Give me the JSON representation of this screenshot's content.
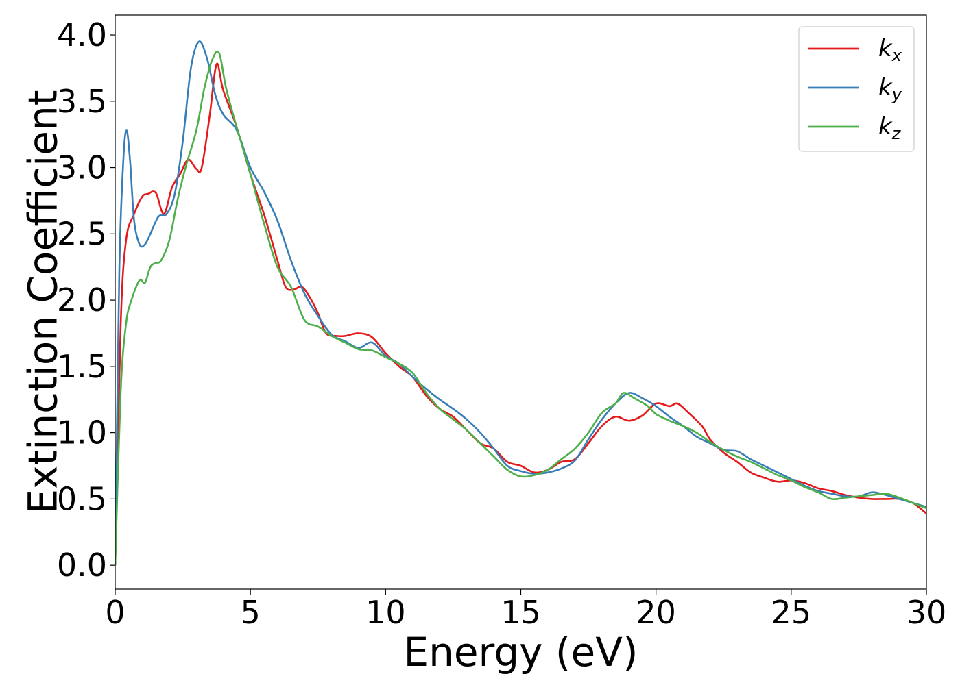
{
  "chart_data": {
    "type": "line",
    "title": "",
    "xlabel": "Energy (eV)",
    "ylabel": "Extinction Coefficient",
    "xlim": [
      0,
      30
    ],
    "ylim": [
      -0.18,
      4.15
    ],
    "xticks": [
      0,
      5,
      10,
      15,
      20,
      25,
      30
    ],
    "xtick_labels": [
      "0",
      "5",
      "10",
      "15",
      "20",
      "25",
      "30"
    ],
    "yticks": [
      0.0,
      0.5,
      1.0,
      1.5,
      2.0,
      2.5,
      3.0,
      3.5,
      4.0
    ],
    "ytick_labels": [
      "0.0",
      "0.5",
      "1.0",
      "1.5",
      "2.0",
      "2.5",
      "3.0",
      "3.5",
      "4.0"
    ],
    "grid": false,
    "legend_position": "top-right",
    "series": [
      {
        "name": "k_x",
        "label_main": "k",
        "label_sub": "x",
        "color": "#e41a1c",
        "x": [
          0,
          0.2,
          0.4,
          0.7,
          1.0,
          1.2,
          1.5,
          1.8,
          2.1,
          2.4,
          2.7,
          3.0,
          3.2,
          3.5,
          3.75,
          4.0,
          4.5,
          5.0,
          5.5,
          6.0,
          6.3,
          6.6,
          6.9,
          7.2,
          7.5,
          7.8,
          8.2,
          8.5,
          9.0,
          9.5,
          10.0,
          10.5,
          11.0,
          11.5,
          12.0,
          12.5,
          13.0,
          13.5,
          14.0,
          14.5,
          15.0,
          15.5,
          16.0,
          16.5,
          17.0,
          17.5,
          18.0,
          18.5,
          19.0,
          19.5,
          20.0,
          20.5,
          20.8,
          21.2,
          21.7,
          22.0,
          22.5,
          23.0,
          23.5,
          24.0,
          24.5,
          25.0,
          25.5,
          26.0,
          26.5,
          27.0,
          27.5,
          28.0,
          28.5,
          29.0,
          29.5,
          30.0
        ],
        "values": [
          0.0,
          1.8,
          2.45,
          2.65,
          2.78,
          2.8,
          2.81,
          2.65,
          2.85,
          2.95,
          3.06,
          2.99,
          3.0,
          3.4,
          3.78,
          3.58,
          3.3,
          2.95,
          2.65,
          2.3,
          2.1,
          2.08,
          2.1,
          2.02,
          1.9,
          1.75,
          1.73,
          1.73,
          1.75,
          1.72,
          1.6,
          1.5,
          1.42,
          1.28,
          1.18,
          1.12,
          1.02,
          0.92,
          0.88,
          0.78,
          0.75,
          0.7,
          0.72,
          0.78,
          0.8,
          0.92,
          1.05,
          1.12,
          1.09,
          1.13,
          1.22,
          1.2,
          1.22,
          1.15,
          1.05,
          0.95,
          0.85,
          0.78,
          0.7,
          0.66,
          0.63,
          0.64,
          0.62,
          0.58,
          0.56,
          0.53,
          0.51,
          0.5,
          0.5,
          0.5,
          0.47,
          0.39
        ]
      },
      {
        "name": "k_y",
        "label_main": "k",
        "label_sub": "y",
        "color": "#377eb8",
        "x": [
          0,
          0.15,
          0.3,
          0.42,
          0.55,
          0.7,
          0.9,
          1.1,
          1.3,
          1.6,
          1.9,
          2.2,
          2.5,
          2.8,
          3.1,
          3.4,
          3.7,
          4.0,
          4.5,
          5.0,
          5.5,
          6.0,
          6.5,
          7.0,
          7.5,
          8.0,
          8.5,
          9.0,
          9.5,
          10.0,
          10.5,
          11.0,
          11.5,
          12.0,
          12.5,
          13.0,
          13.5,
          14.0,
          14.5,
          15.0,
          15.5,
          16.0,
          16.5,
          17.0,
          17.5,
          18.0,
          18.5,
          19.0,
          19.5,
          20.0,
          20.5,
          21.0,
          21.5,
          22.0,
          22.5,
          23.0,
          23.5,
          24.0,
          24.5,
          25.0,
          25.5,
          26.0,
          26.5,
          27.0,
          27.5,
          28.0,
          28.5,
          29.0,
          29.5,
          30.0
        ],
        "values": [
          0.0,
          2.2,
          3.05,
          3.28,
          3.05,
          2.6,
          2.42,
          2.42,
          2.5,
          2.63,
          2.65,
          2.8,
          3.2,
          3.75,
          3.95,
          3.82,
          3.55,
          3.4,
          3.28,
          3.0,
          2.82,
          2.6,
          2.3,
          2.05,
          1.88,
          1.74,
          1.69,
          1.64,
          1.68,
          1.58,
          1.52,
          1.42,
          1.33,
          1.25,
          1.18,
          1.1,
          1.0,
          0.88,
          0.75,
          0.71,
          0.69,
          0.7,
          0.73,
          0.79,
          0.95,
          1.1,
          1.22,
          1.3,
          1.26,
          1.2,
          1.12,
          1.05,
          0.97,
          0.92,
          0.87,
          0.86,
          0.8,
          0.75,
          0.7,
          0.65,
          0.6,
          0.56,
          0.54,
          0.52,
          0.52,
          0.55,
          0.53,
          0.5,
          0.47,
          0.44
        ]
      },
      {
        "name": "k_z",
        "label_main": "k",
        "label_sub": "z",
        "color": "#4daf4a",
        "x": [
          0,
          0.2,
          0.4,
          0.6,
          0.9,
          1.1,
          1.3,
          1.5,
          1.7,
          2.0,
          2.3,
          2.6,
          3.0,
          3.3,
          3.6,
          3.85,
          4.1,
          4.5,
          5.0,
          5.5,
          6.0,
          6.5,
          7.0,
          7.5,
          8.0,
          8.5,
          9.0,
          9.5,
          10.0,
          10.5,
          11.0,
          11.5,
          12.0,
          12.5,
          13.0,
          13.5,
          14.0,
          14.5,
          15.0,
          15.5,
          16.0,
          16.5,
          17.0,
          17.5,
          18.0,
          18.5,
          18.8,
          19.2,
          19.7,
          20.0,
          20.5,
          21.0,
          21.5,
          22.0,
          22.5,
          23.0,
          23.5,
          24.0,
          24.5,
          25.0,
          25.5,
          26.0,
          26.5,
          27.0,
          27.5,
          28.0,
          28.5,
          29.0,
          29.5,
          30.0
        ],
        "values": [
          0.0,
          1.3,
          1.82,
          2.0,
          2.15,
          2.13,
          2.25,
          2.28,
          2.3,
          2.45,
          2.75,
          3.0,
          3.28,
          3.6,
          3.82,
          3.86,
          3.6,
          3.3,
          2.95,
          2.58,
          2.25,
          2.1,
          1.85,
          1.8,
          1.73,
          1.68,
          1.63,
          1.62,
          1.57,
          1.52,
          1.45,
          1.3,
          1.18,
          1.1,
          1.02,
          0.92,
          0.82,
          0.72,
          0.67,
          0.68,
          0.72,
          0.8,
          0.88,
          1.0,
          1.15,
          1.22,
          1.3,
          1.26,
          1.2,
          1.14,
          1.09,
          1.05,
          1.0,
          0.93,
          0.87,
          0.82,
          0.78,
          0.73,
          0.68,
          0.64,
          0.59,
          0.55,
          0.5,
          0.51,
          0.52,
          0.53,
          0.54,
          0.51,
          0.47,
          0.43
        ]
      }
    ]
  }
}
